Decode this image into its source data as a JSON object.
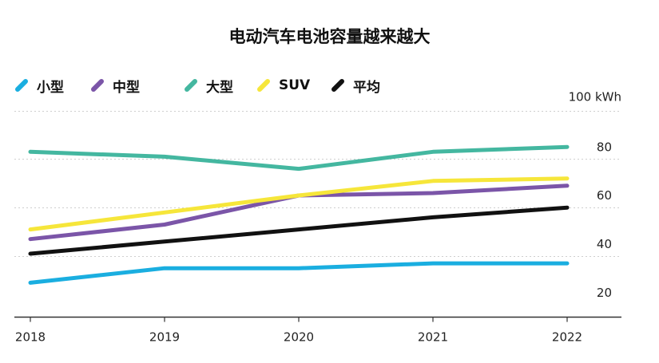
{
  "chart_data": {
    "type": "line",
    "title": "电动汽车电池容量越来越大",
    "unit_label": "100 kWh",
    "xlabel": "",
    "ylabel": "",
    "categories": [
      "2018",
      "2019",
      "2020",
      "2021",
      "2022"
    ],
    "ylim": [
      15,
      100
    ],
    "yticks": [
      20,
      40,
      60,
      80
    ],
    "grid": true,
    "legend_position": "top-left",
    "series": [
      {
        "name": "小型",
        "color": "#1aaee0",
        "values": [
          29,
          35,
          35,
          37,
          37
        ]
      },
      {
        "name": "中型",
        "color": "#7b55a8",
        "values": [
          47,
          53,
          65,
          66,
          69
        ]
      },
      {
        "name": "大型",
        "color": "#44b7a0",
        "values": [
          83,
          81,
          76,
          83,
          85
        ]
      },
      {
        "name": "SUV",
        "color": "#f6e63a",
        "values": [
          51,
          58,
          65,
          71,
          72
        ]
      },
      {
        "name": "平均",
        "color": "#111111",
        "values": [
          41,
          46,
          51,
          56,
          60
        ]
      }
    ]
  }
}
